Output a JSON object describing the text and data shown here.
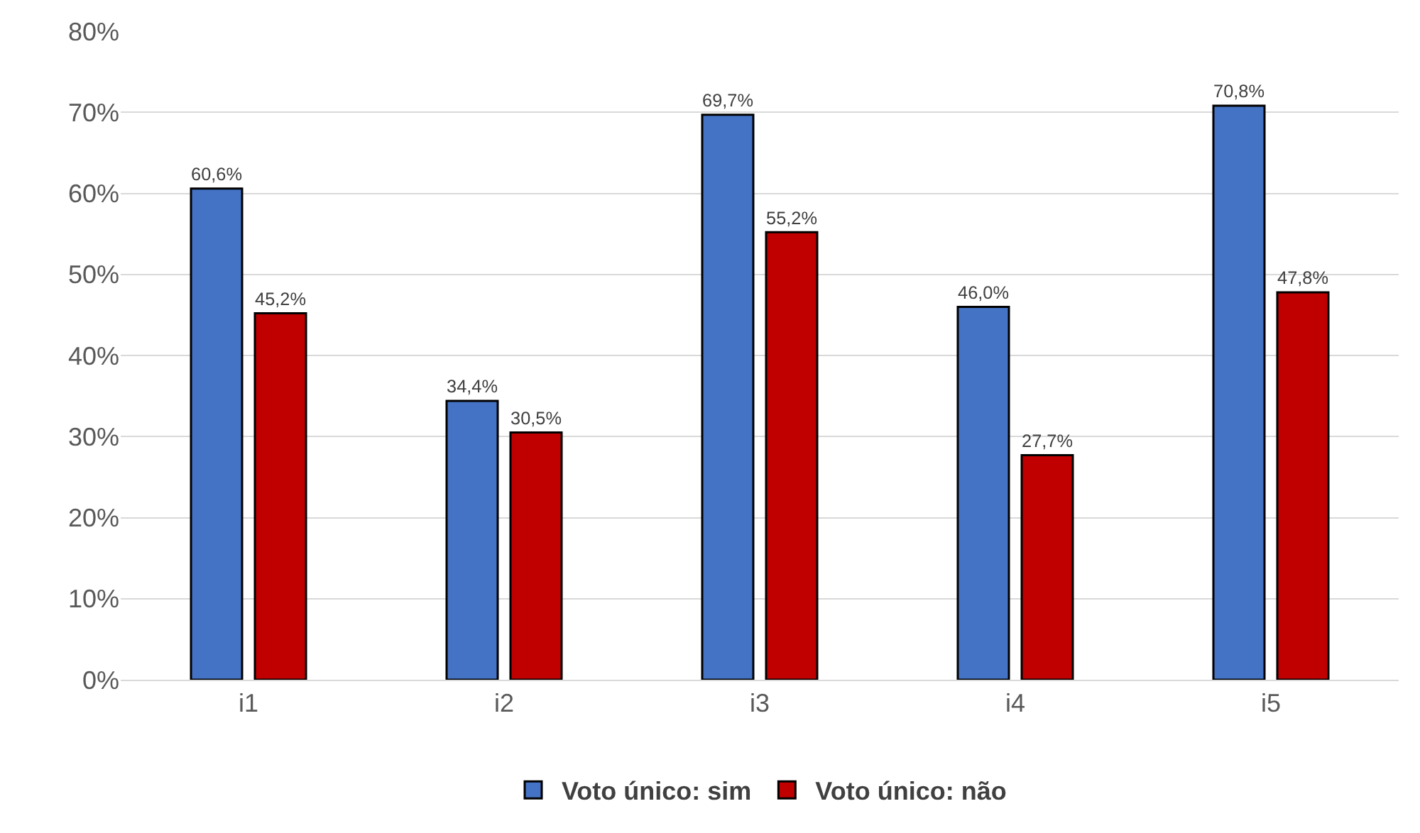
{
  "chart_data": {
    "type": "bar",
    "categories": [
      "i1",
      "i2",
      "i3",
      "i4",
      "i5"
    ],
    "series": [
      {
        "name": "Voto único: sim",
        "color": "#4472c4",
        "values": [
          60.6,
          34.4,
          69.7,
          46.0,
          70.8
        ],
        "value_labels": [
          "60,6%",
          "34,4%",
          "69,7%",
          "46,0%",
          "70,8%"
        ]
      },
      {
        "name": "Voto único: não",
        "color": "#c00000",
        "values": [
          45.2,
          30.5,
          55.2,
          27.7,
          47.8
        ],
        "value_labels": [
          "45,2%",
          "30,5%",
          "55,2%",
          "27,7%",
          "47,8%"
        ]
      }
    ],
    "ylim": [
      0,
      80
    ],
    "yticks": [
      {
        "value": 0,
        "label": "0%"
      },
      {
        "value": 10,
        "label": "10%"
      },
      {
        "value": 20,
        "label": "20%"
      },
      {
        "value": 30,
        "label": "30%"
      },
      {
        "value": 40,
        "label": "40%"
      },
      {
        "value": 50,
        "label": "50%"
      },
      {
        "value": 60,
        "label": "60%"
      },
      {
        "value": 70,
        "label": "70%"
      },
      {
        "value": 80,
        "label": "80%"
      }
    ],
    "grid": "y",
    "legend": "bottom"
  }
}
